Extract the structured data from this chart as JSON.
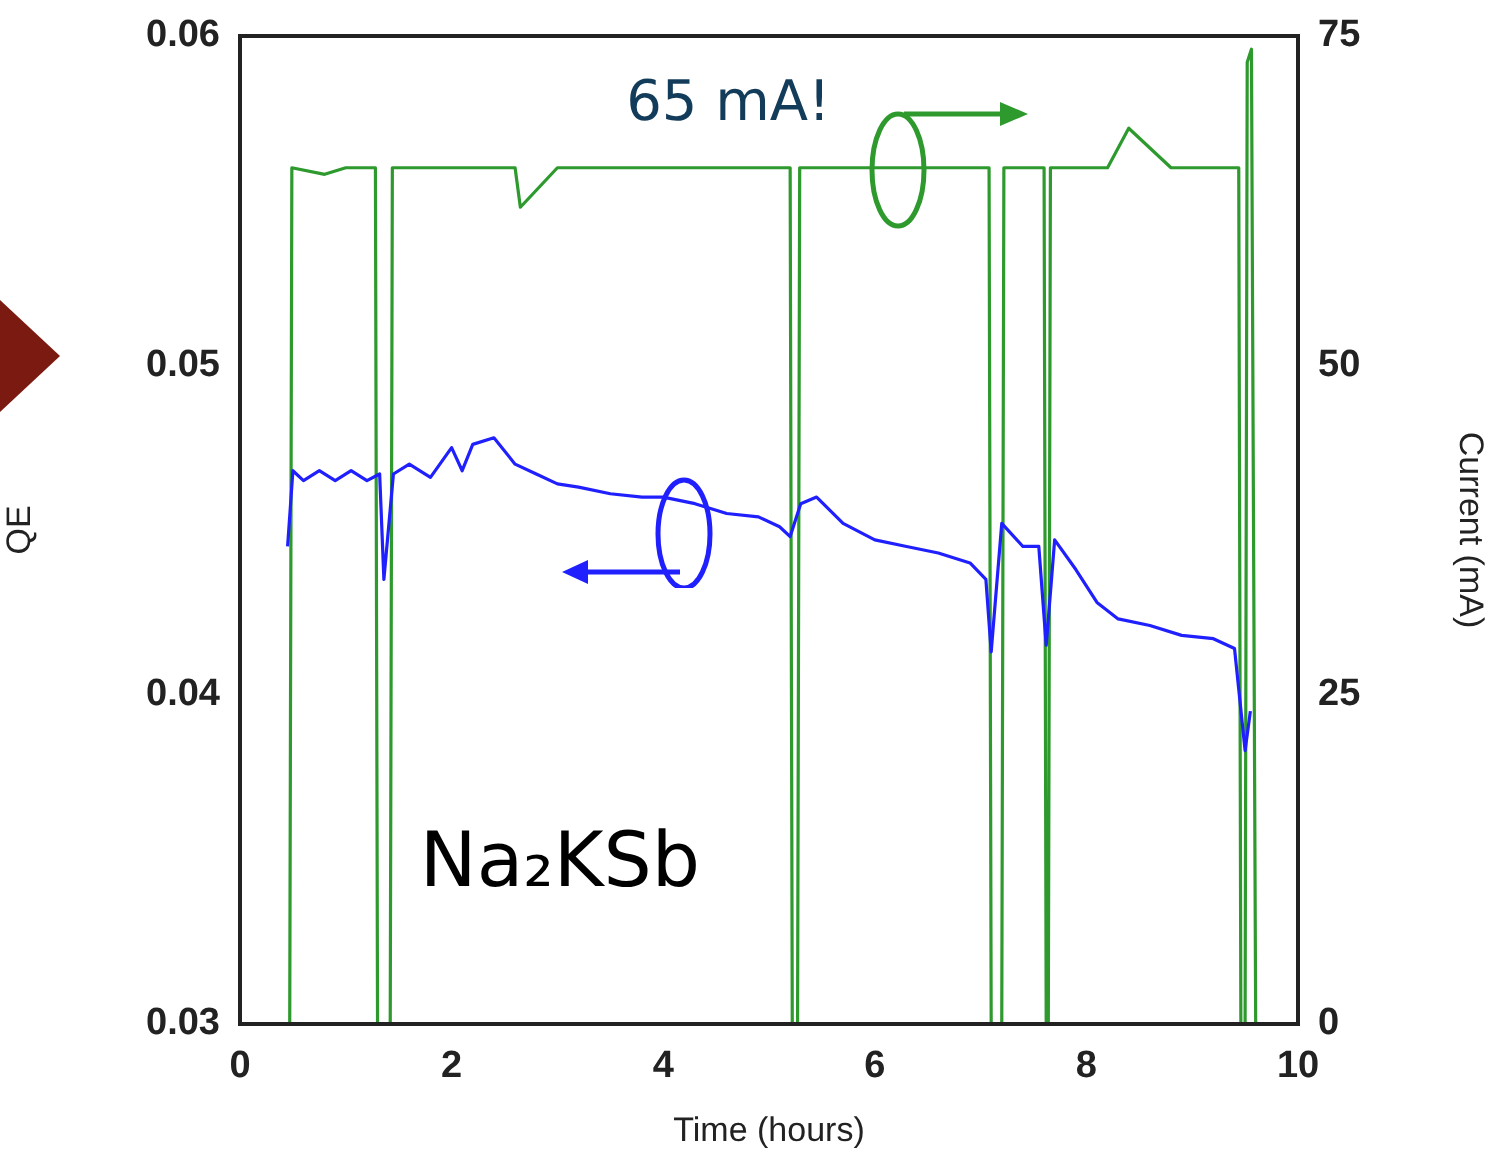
{
  "chart_data": {
    "type": "line",
    "xlabel": "Time (hours)",
    "ylabel": "QE",
    "y2label": "Current (mA)",
    "xlim": [
      0,
      10
    ],
    "xticks": [
      0,
      2,
      4,
      6,
      8,
      10
    ],
    "ylim": [
      0.03,
      0.06
    ],
    "yticks": [
      0.03,
      0.04,
      0.05,
      0.06
    ],
    "y2lim": [
      0,
      75
    ],
    "y2ticks": [
      0,
      25,
      50,
      75
    ],
    "grid": false,
    "legend": false,
    "marker": "none",
    "line_style": "solid",
    "annotations": [
      "65 mA!",
      "Na₂KSb"
    ],
    "series": [
      {
        "color": "#2020ff",
        "x": [
          0.45,
          0.5,
          0.6,
          0.75,
          0.9,
          1.05,
          1.2,
          1.32,
          1.36,
          1.45,
          1.6,
          1.8,
          2.0,
          2.1,
          2.2,
          2.4,
          2.6,
          2.8,
          3.0,
          3.2,
          3.5,
          3.8,
          4.0,
          4.3,
          4.6,
          4.9,
          5.1,
          5.2,
          5.3,
          5.45,
          5.7,
          6.0,
          6.3,
          6.6,
          6.9,
          7.05,
          7.1,
          7.2,
          7.4,
          7.55,
          7.62,
          7.7,
          7.9,
          8.1,
          8.3,
          8.6,
          8.9,
          9.2,
          9.4,
          9.5,
          9.55
        ],
        "values": [
          0.0445,
          0.0468,
          0.0465,
          0.0468,
          0.0465,
          0.0468,
          0.0465,
          0.0467,
          0.0435,
          0.0467,
          0.047,
          0.0466,
          0.0475,
          0.0468,
          0.0476,
          0.0478,
          0.047,
          0.0467,
          0.0464,
          0.0463,
          0.0461,
          0.046,
          0.046,
          0.0458,
          0.0455,
          0.0454,
          0.0451,
          0.0448,
          0.0458,
          0.046,
          0.0452,
          0.0447,
          0.0445,
          0.0443,
          0.044,
          0.0435,
          0.0413,
          0.0452,
          0.0445,
          0.0445,
          0.0415,
          0.0447,
          0.0438,
          0.0428,
          0.0423,
          0.0421,
          0.0418,
          0.0417,
          0.0414,
          0.0383,
          0.0395
        ]
      },
      {
        "color": "#2e9a2e",
        "axis": "y2",
        "x": [
          0.47,
          0.49,
          0.8,
          1.0,
          1.28,
          1.3,
          1.33,
          1.42,
          1.44,
          2.0,
          2.6,
          2.65,
          3.0,
          3.5,
          4.0,
          4.5,
          5.0,
          5.2,
          5.22,
          5.27,
          5.29,
          5.6,
          6.0,
          6.5,
          7.0,
          7.08,
          7.1,
          7.2,
          7.22,
          7.45,
          7.6,
          7.62,
          7.64,
          7.66,
          8.0,
          8.2,
          8.4,
          8.8,
          9.2,
          9.44,
          9.46,
          9.5,
          9.52,
          9.56,
          9.6
        ],
        "values": [
          0,
          65,
          64.5,
          65,
          65,
          0,
          0,
          0,
          65,
          65,
          65,
          62,
          65,
          65,
          65,
          65,
          65,
          65,
          0,
          0,
          65,
          65,
          65,
          65,
          65,
          65,
          0,
          0,
          65,
          65,
          65,
          0,
          0,
          65,
          65,
          65,
          68,
          65,
          65,
          65,
          0,
          0,
          73,
          74,
          0
        ]
      }
    ]
  }
}
